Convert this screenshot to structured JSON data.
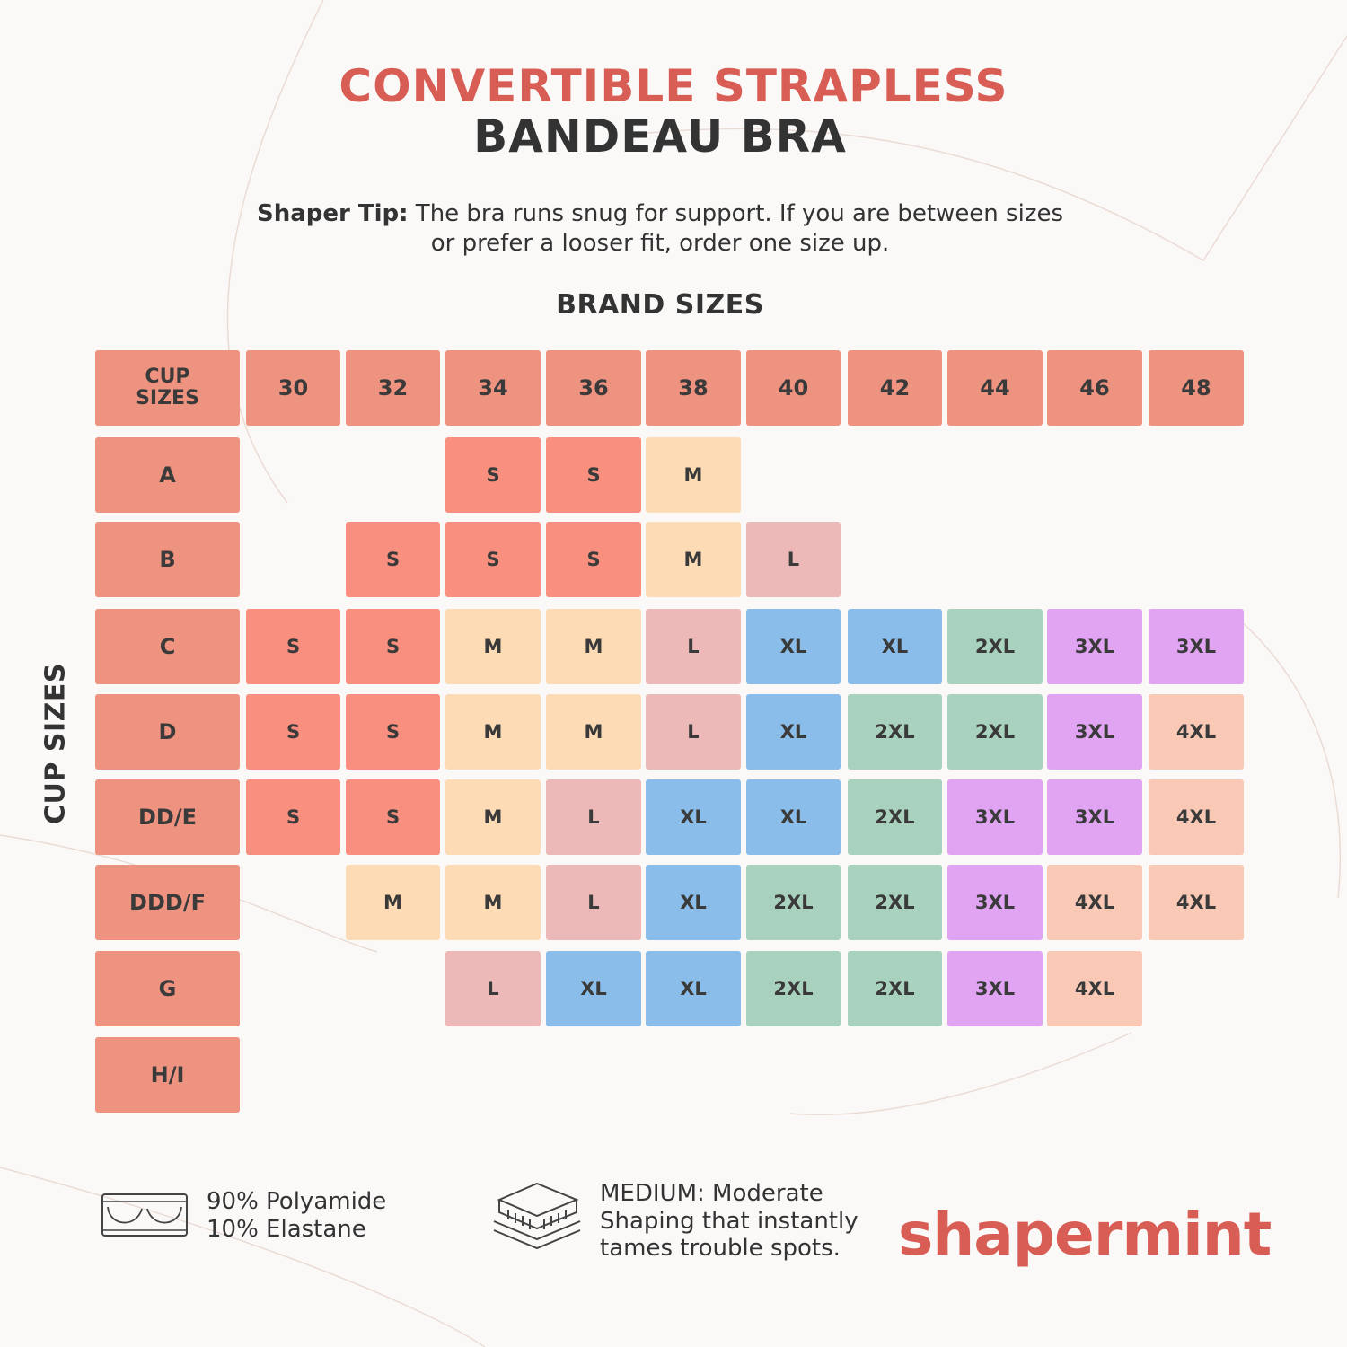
{
  "header": {
    "title_line1": "CONVERTIBLE STRAPLESS",
    "title_line2": "BANDEAU BRA",
    "tip_label": "Shaper Tip:",
    "tip_text_line1": " The bra runs snug for support. If you are between sizes",
    "tip_text_line2": "or prefer a looser fit, order one size up."
  },
  "chart_data": {
    "type": "table",
    "title": "BRAND SIZES",
    "row_axis_label": "CUP SIZES",
    "corner_label": "CUP SIZES",
    "columns": [
      "30",
      "32",
      "34",
      "36",
      "38",
      "40",
      "42",
      "44",
      "46",
      "48"
    ],
    "rows": [
      "A",
      "B",
      "C",
      "D",
      "DD/E",
      "DDD/F",
      "G",
      "H/I"
    ],
    "cells": [
      [
        "",
        "",
        "S",
        "S",
        "M",
        "",
        "",
        "",
        "",
        ""
      ],
      [
        "",
        "S",
        "S",
        "S",
        "M",
        "L",
        "",
        "",
        "",
        ""
      ],
      [
        "S",
        "S",
        "M",
        "M",
        "L",
        "XL",
        "XL",
        "2XL",
        "3XL",
        "3XL"
      ],
      [
        "S",
        "S",
        "M",
        "M",
        "L",
        "XL",
        "2XL",
        "2XL",
        "3XL",
        "4XL"
      ],
      [
        "S",
        "S",
        "M",
        "L",
        "XL",
        "XL",
        "2XL",
        "3XL",
        "3XL",
        "4XL"
      ],
      [
        "",
        "M",
        "M",
        "L",
        "XL",
        "2XL",
        "2XL",
        "3XL",
        "4XL",
        "4XL"
      ],
      [
        "",
        "",
        "L",
        "XL",
        "XL",
        "2XL",
        "2XL",
        "3XL",
        "4XL",
        ""
      ],
      [
        "",
        "",
        "",
        "",
        "",
        "",
        "",
        "",
        "",
        ""
      ]
    ],
    "size_colors": {
      "S": "#f88f7f",
      "M": "#fddcb5",
      "L": "#ecb8b8",
      "XL": "#8abdea",
      "2XL": "#a9d2be",
      "3XL": "#e0a4f2",
      "4XL": "#f9c9b6"
    },
    "header_color": "#ee9380"
  },
  "footer": {
    "fabric_line1": "90% Polyamide",
    "fabric_line2": "10% Elastane",
    "shaping_line1": "MEDIUM: Moderate",
    "shaping_line2": "Shaping that instantly",
    "shaping_line3": "tames trouble spots.",
    "logo_text": "shapermint",
    "fabric_icon": "bandeau-bra-icon",
    "shaping_icon": "layered-fabric-icon"
  }
}
